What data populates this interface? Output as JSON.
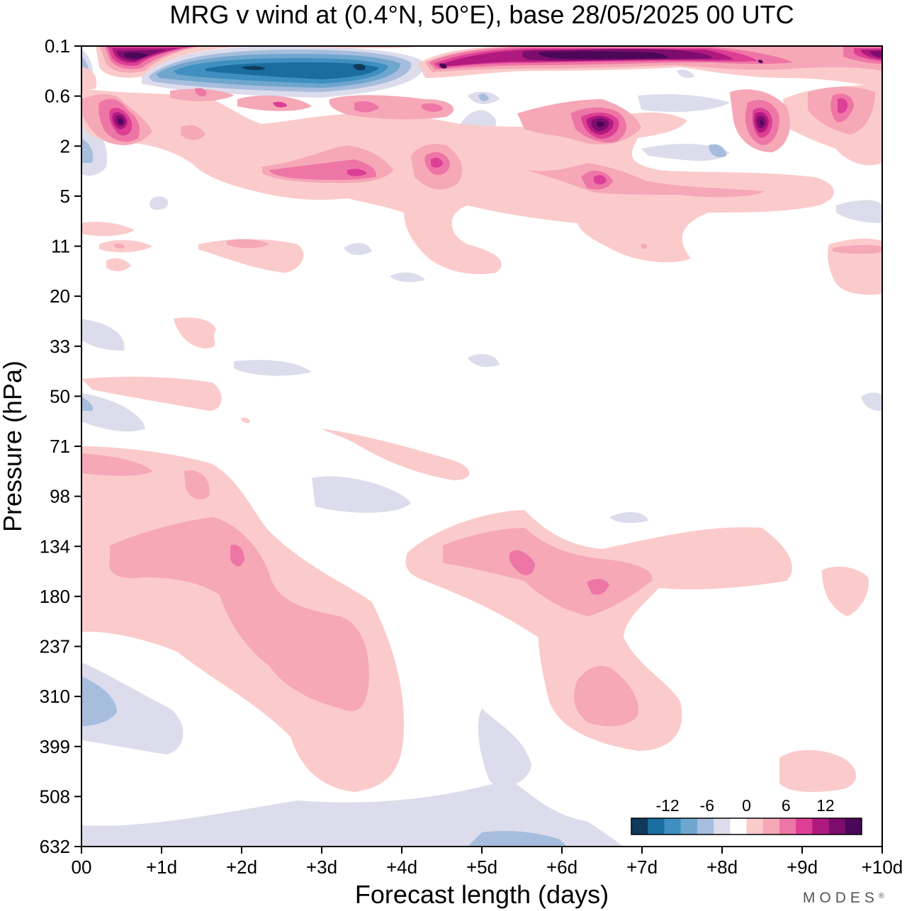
{
  "chart_data": {
    "type": "heatmap",
    "title": "MRG v wind at (0.4°N, 50°E),  base 28/05/2025  00 UTC",
    "xlabel": "Forecast length (days)",
    "ylabel": "Pressure (hPa)",
    "x_ticks": [
      "00",
      "+1d",
      "+2d",
      "+3d",
      "+4d",
      "+5d",
      "+6d",
      "+7d",
      "+8d",
      "+9d",
      "+10d"
    ],
    "y_ticks": [
      "0.1",
      "0.6",
      "2",
      "5",
      "11",
      "20",
      "33",
      "50",
      "71",
      "98",
      "134",
      "180",
      "237",
      "310",
      "399",
      "508",
      "632"
    ],
    "xlim": [
      0,
      10
    ],
    "y_scale": "log (pressure, top = 0.1 hPa)",
    "colorbar": {
      "tick_labels": [
        "-12",
        "-6",
        "0",
        "6",
        "12"
      ],
      "levels": [
        -15,
        -12.5,
        -10,
        -7.5,
        -5,
        -2.5,
        2.5,
        5,
        7.5,
        10,
        12.5,
        15
      ],
      "colors": [
        "#0f3a5c",
        "#1a6e9f",
        "#3f8fc0",
        "#6fa6ce",
        "#a6bddd",
        "#dcdcec",
        "#ffffff",
        "#fbcbcb",
        "#f6a8b7",
        "#ee76a6",
        "#dd3f95",
        "#b01a7f",
        "#7e0c6f",
        "#4b0758"
      ]
    },
    "features": [
      {
        "sign": "negative",
        "level": -12.5,
        "day_range": [
          1.1,
          4.0
        ],
        "pressure_hPa": [
          0.15,
          0.4
        ],
        "note": "easterly-phase (negative v) core near top"
      },
      {
        "sign": "positive",
        "level": 15,
        "day_range": [
          0.3,
          1.0
        ],
        "pressure_hPa": [
          0.1,
          0.2
        ]
      },
      {
        "sign": "positive",
        "level": 15,
        "day_range": [
          5.5,
          8.0
        ],
        "pressure_hPa": [
          0.1,
          0.2
        ]
      },
      {
        "sign": "positive",
        "level": 12.5,
        "day_range": [
          0.3,
          0.7
        ],
        "pressure_hPa": [
          0.8,
          1.6
        ]
      },
      {
        "sign": "positive",
        "level": 15,
        "day_range": [
          6.2,
          6.8
        ],
        "pressure_hPa": [
          0.8,
          1.6
        ]
      },
      {
        "sign": "positive",
        "level": 12.5,
        "day_range": [
          8.3,
          8.8
        ],
        "pressure_hPa": [
          0.8,
          1.8
        ]
      },
      {
        "sign": "positive",
        "level": 5,
        "day_range": [
          0.5,
          3.7
        ],
        "pressure_hPa": [
          110,
          350
        ]
      },
      {
        "sign": "positive",
        "level": 5,
        "day_range": [
          4.5,
          7.0
        ],
        "pressure_hPa": [
          120,
          190
        ]
      },
      {
        "sign": "negative",
        "level": -2.5,
        "day_range": [
          0,
          1.3
        ],
        "pressure_hPa": [
          260,
          420
        ]
      },
      {
        "sign": "positive",
        "level": 2.5,
        "day_range": [
          8.8,
          9.6
        ],
        "pressure_hPa": [
          420,
          560
        ]
      }
    ]
  },
  "brand": "MODES",
  "brand_mark": "®"
}
